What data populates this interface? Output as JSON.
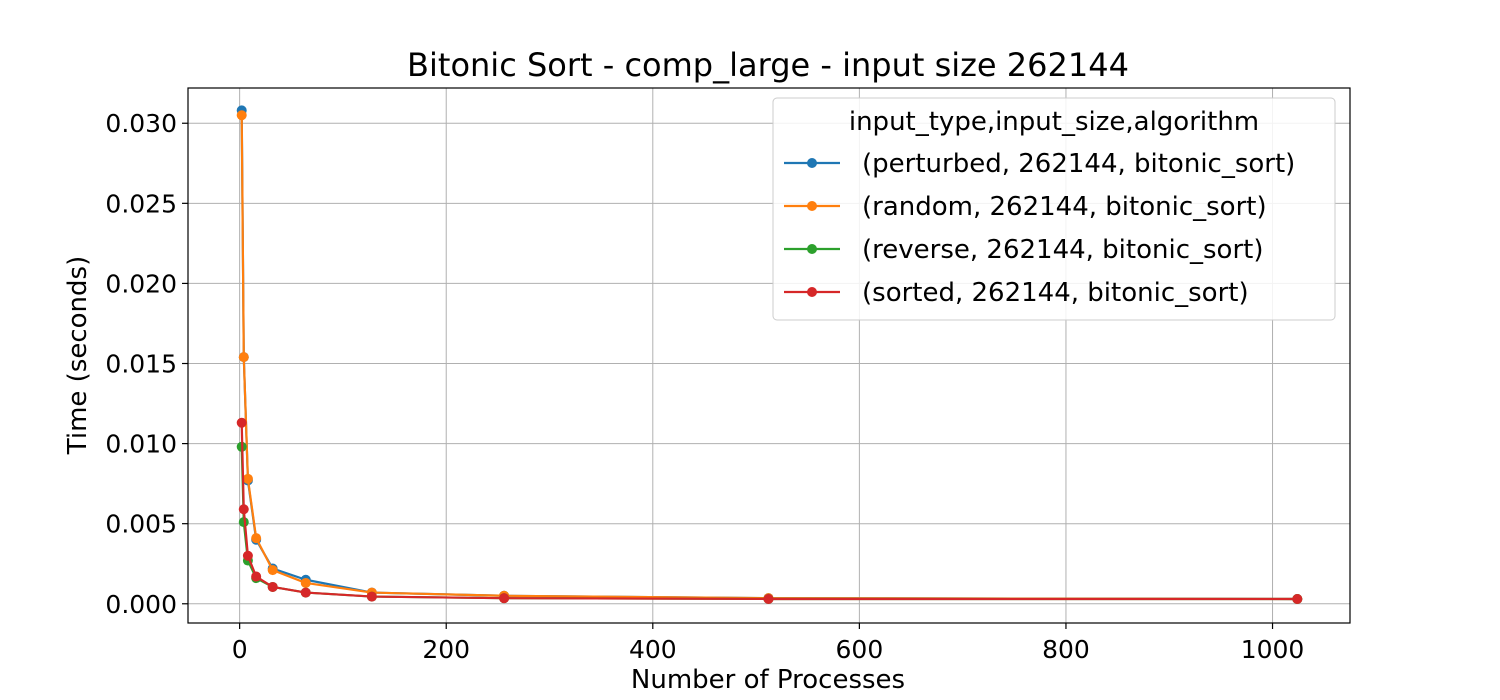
{
  "chart_data": {
    "type": "line",
    "title": "Bitonic Sort - comp_large - input size 262144",
    "xlabel": "Number of Processes",
    "ylabel": "Time (seconds)",
    "xlim": [
      -50,
      1075
    ],
    "ylim": [
      -0.0012,
      0.0322
    ],
    "xticks": [
      0,
      200,
      400,
      600,
      800,
      1000
    ],
    "yticks": [
      0.0,
      0.005,
      0.01,
      0.015,
      0.02,
      0.025,
      0.03
    ],
    "xtick_labels": [
      "0",
      "200",
      "400",
      "600",
      "800",
      "1000"
    ],
    "ytick_labels": [
      "0.000",
      "0.005",
      "0.010",
      "0.015",
      "0.020",
      "0.025",
      "0.030"
    ],
    "grid": true,
    "legend": {
      "title": "input_type,input_size,algorithm",
      "placement": "top-right"
    },
    "x": [
      2,
      4,
      8,
      16,
      32,
      64,
      128,
      256,
      512,
      1024
    ],
    "series": [
      {
        "name": "(perturbed, 262144, bitonic_sort)",
        "color": "#1f77b4",
        "values": [
          0.0308,
          0.0154,
          0.0077,
          0.004,
          0.0022,
          0.0015,
          0.0007,
          0.0005,
          0.00035,
          0.0003
        ]
      },
      {
        "name": "(random, 262144, bitonic_sort)",
        "color": "#ff7f0e",
        "values": [
          0.0305,
          0.0154,
          0.0078,
          0.0041,
          0.0021,
          0.0013,
          0.0007,
          0.0005,
          0.00035,
          0.0003
        ]
      },
      {
        "name": "(reverse, 262144, bitonic_sort)",
        "color": "#2ca02c",
        "values": [
          0.0098,
          0.0051,
          0.0027,
          0.0016,
          0.00105,
          0.0007,
          0.00045,
          0.00035,
          0.0003,
          0.0003
        ]
      },
      {
        "name": "(sorted, 262144, bitonic_sort)",
        "color": "#d62728",
        "values": [
          0.0113,
          0.0059,
          0.003,
          0.0017,
          0.00105,
          0.0007,
          0.00045,
          0.00035,
          0.0003,
          0.0003
        ]
      }
    ]
  }
}
